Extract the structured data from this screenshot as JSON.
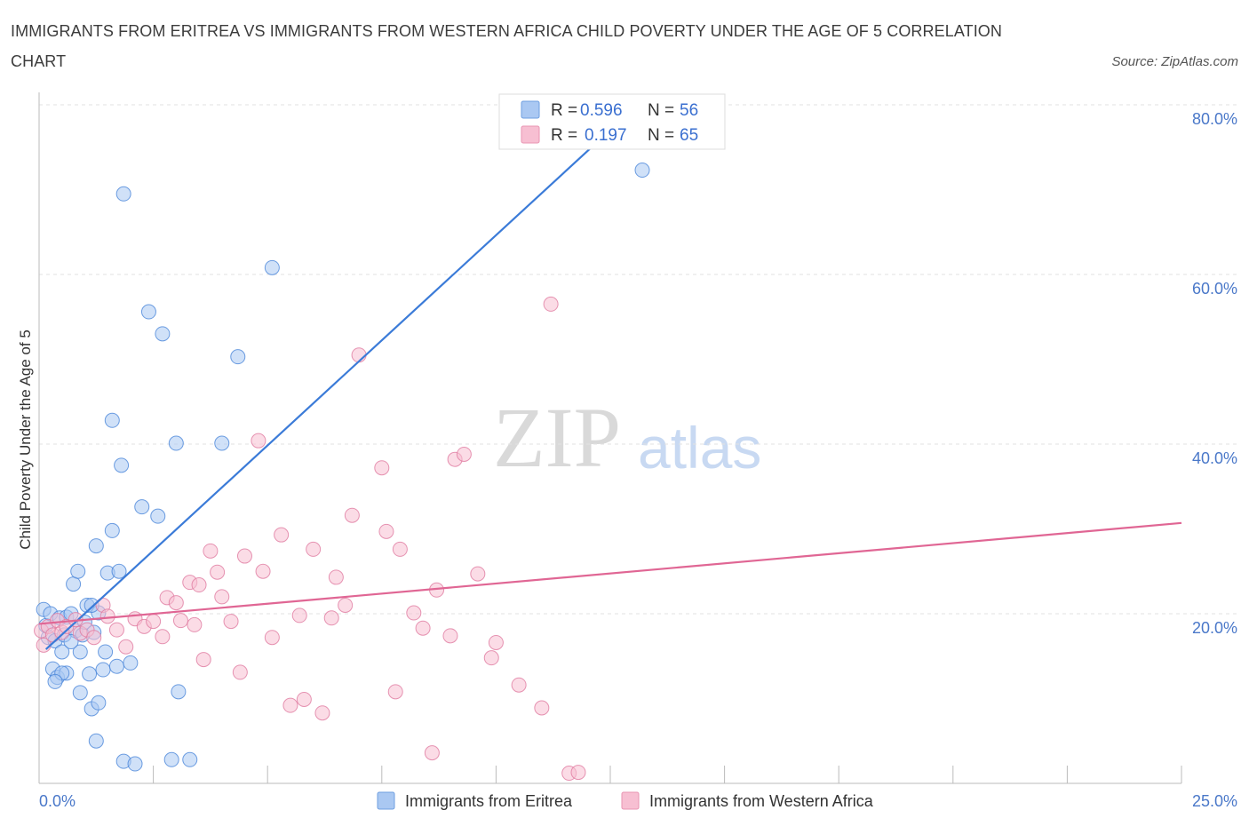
{
  "title": "IMMIGRANTS FROM ERITREA VS IMMIGRANTS FROM WESTERN AFRICA CHILD POVERTY UNDER THE AGE OF 5 CORRELATION CHART",
  "source": "Source: ZipAtlas.com",
  "watermark": {
    "zip": "ZIP",
    "atlas": "atlas"
  },
  "legend": {
    "rows": [
      {
        "r_label": "R =",
        "r_value": "0.596",
        "n_label": "N =",
        "n_value": "56",
        "color": "#aac8f2"
      },
      {
        "r_label": "R =",
        "r_value": "0.197",
        "n_label": "N =",
        "n_value": "65",
        "color": "#f7bfd2"
      }
    ]
  },
  "chart_data": {
    "type": "scatter",
    "title": "IMMIGRANTS FROM ERITREA VS IMMIGRANTS FROM WESTERN AFRICA CHILD POVERTY UNDER THE AGE OF 5 CORRELATION CHART",
    "xlabel": "",
    "ylabel": "Child Poverty Under the Age of 5",
    "xlim": [
      0,
      25
    ],
    "ylim": [
      0,
      80
    ],
    "x_tick_labels": [
      "0.0%",
      "25.0%"
    ],
    "y_ticks": [
      20,
      40,
      60,
      80
    ],
    "y_tick_labels": [
      "20.0%",
      "40.0%",
      "60.0%",
      "80.0%"
    ],
    "grid": true,
    "legend_position": "top-center",
    "series": [
      {
        "name": "Immigrants from Eritrea",
        "color": "#4a86d9",
        "fill": "#aac8f2",
        "trend": {
          "x": [
            0.15,
            13.0
          ],
          "y": [
            15.8,
            79.5
          ],
          "color": "#3b7bd8"
        },
        "points": [
          [
            0.1,
            20.5
          ],
          [
            0.15,
            18.6
          ],
          [
            0.2,
            17.2
          ],
          [
            0.25,
            20.0
          ],
          [
            0.3,
            13.5
          ],
          [
            0.35,
            16.8
          ],
          [
            0.4,
            12.5
          ],
          [
            0.45,
            19.5
          ],
          [
            0.5,
            15.5
          ],
          [
            0.55,
            17.5
          ],
          [
            0.6,
            13.0
          ],
          [
            0.6,
            19.6
          ],
          [
            0.7,
            20.0
          ],
          [
            0.75,
            23.5
          ],
          [
            0.8,
            18.0
          ],
          [
            0.85,
            25.0
          ],
          [
            0.9,
            15.5
          ],
          [
            0.9,
            10.7
          ],
          [
            0.95,
            17.5
          ],
          [
            1.0,
            19.0
          ],
          [
            1.05,
            21.0
          ],
          [
            1.1,
            12.9
          ],
          [
            1.15,
            8.8
          ],
          [
            1.2,
            17.8
          ],
          [
            1.25,
            5.0
          ],
          [
            1.25,
            28.0
          ],
          [
            1.3,
            9.5
          ],
          [
            1.3,
            20.1
          ],
          [
            1.4,
            13.4
          ],
          [
            1.45,
            15.5
          ],
          [
            1.5,
            24.8
          ],
          [
            1.6,
            29.8
          ],
          [
            1.6,
            42.8
          ],
          [
            1.7,
            13.8
          ],
          [
            1.75,
            25.0
          ],
          [
            1.8,
            37.5
          ],
          [
            1.85,
            69.5
          ],
          [
            1.85,
            2.6
          ],
          [
            2.0,
            14.2
          ],
          [
            2.1,
            2.3
          ],
          [
            2.25,
            32.6
          ],
          [
            2.4,
            55.6
          ],
          [
            2.6,
            31.5
          ],
          [
            2.7,
            53.0
          ],
          [
            2.9,
            2.8
          ],
          [
            3.0,
            40.1
          ],
          [
            3.05,
            10.8
          ],
          [
            3.3,
            2.8
          ],
          [
            4.0,
            40.1
          ],
          [
            4.35,
            50.3
          ],
          [
            5.1,
            60.8
          ],
          [
            13.2,
            72.3
          ],
          [
            0.5,
            13.0
          ],
          [
            0.7,
            16.7
          ],
          [
            0.35,
            12.0
          ],
          [
            1.15,
            21.0
          ]
        ]
      },
      {
        "name": "Immigrants from Western Africa",
        "color": "#e07aa0",
        "fill": "#f7bfd2",
        "trend": {
          "x": [
            0.0,
            25.0
          ],
          "y": [
            18.8,
            30.7
          ],
          "color": "#e06694"
        },
        "points": [
          [
            0.05,
            18.0
          ],
          [
            0.1,
            16.3
          ],
          [
            0.2,
            18.5
          ],
          [
            0.3,
            17.5
          ],
          [
            0.4,
            19.2
          ],
          [
            0.5,
            17.8
          ],
          [
            0.6,
            18.5
          ],
          [
            0.8,
            19.3
          ],
          [
            0.9,
            17.7
          ],
          [
            1.05,
            18.1
          ],
          [
            1.2,
            17.2
          ],
          [
            1.4,
            21.0
          ],
          [
            1.5,
            19.7
          ],
          [
            1.7,
            18.1
          ],
          [
            1.9,
            16.1
          ],
          [
            2.1,
            19.4
          ],
          [
            2.3,
            18.5
          ],
          [
            2.5,
            19.1
          ],
          [
            2.7,
            17.3
          ],
          [
            2.8,
            21.9
          ],
          [
            3.0,
            21.3
          ],
          [
            3.1,
            19.2
          ],
          [
            3.3,
            23.7
          ],
          [
            3.4,
            18.7
          ],
          [
            3.5,
            23.4
          ],
          [
            3.6,
            14.6
          ],
          [
            3.75,
            27.4
          ],
          [
            3.9,
            24.9
          ],
          [
            4.0,
            22.0
          ],
          [
            4.2,
            19.1
          ],
          [
            4.4,
            13.1
          ],
          [
            4.5,
            26.8
          ],
          [
            4.8,
            40.4
          ],
          [
            4.9,
            25.0
          ],
          [
            5.1,
            17.2
          ],
          [
            5.3,
            29.3
          ],
          [
            5.5,
            9.2
          ],
          [
            5.7,
            19.8
          ],
          [
            5.8,
            9.9
          ],
          [
            6.0,
            27.6
          ],
          [
            6.2,
            8.3
          ],
          [
            6.4,
            19.5
          ],
          [
            6.5,
            24.3
          ],
          [
            6.7,
            21.0
          ],
          [
            6.85,
            31.6
          ],
          [
            7.0,
            50.5
          ],
          [
            7.5,
            37.2
          ],
          [
            7.6,
            29.7
          ],
          [
            7.8,
            10.8
          ],
          [
            7.9,
            27.6
          ],
          [
            8.2,
            20.1
          ],
          [
            8.4,
            18.3
          ],
          [
            8.6,
            3.6
          ],
          [
            8.7,
            22.8
          ],
          [
            9.0,
            17.4
          ],
          [
            9.1,
            38.2
          ],
          [
            9.3,
            38.8
          ],
          [
            9.6,
            24.7
          ],
          [
            9.9,
            14.8
          ],
          [
            10.0,
            16.6
          ],
          [
            10.5,
            11.6
          ],
          [
            11.0,
            8.9
          ],
          [
            11.2,
            56.5
          ],
          [
            11.6,
            1.2
          ],
          [
            11.8,
            1.3
          ]
        ]
      }
    ]
  },
  "bottom_legend": {
    "items": [
      {
        "label": "Immigrants from Eritrea"
      },
      {
        "label": "Immigrants from Western Africa"
      }
    ]
  }
}
